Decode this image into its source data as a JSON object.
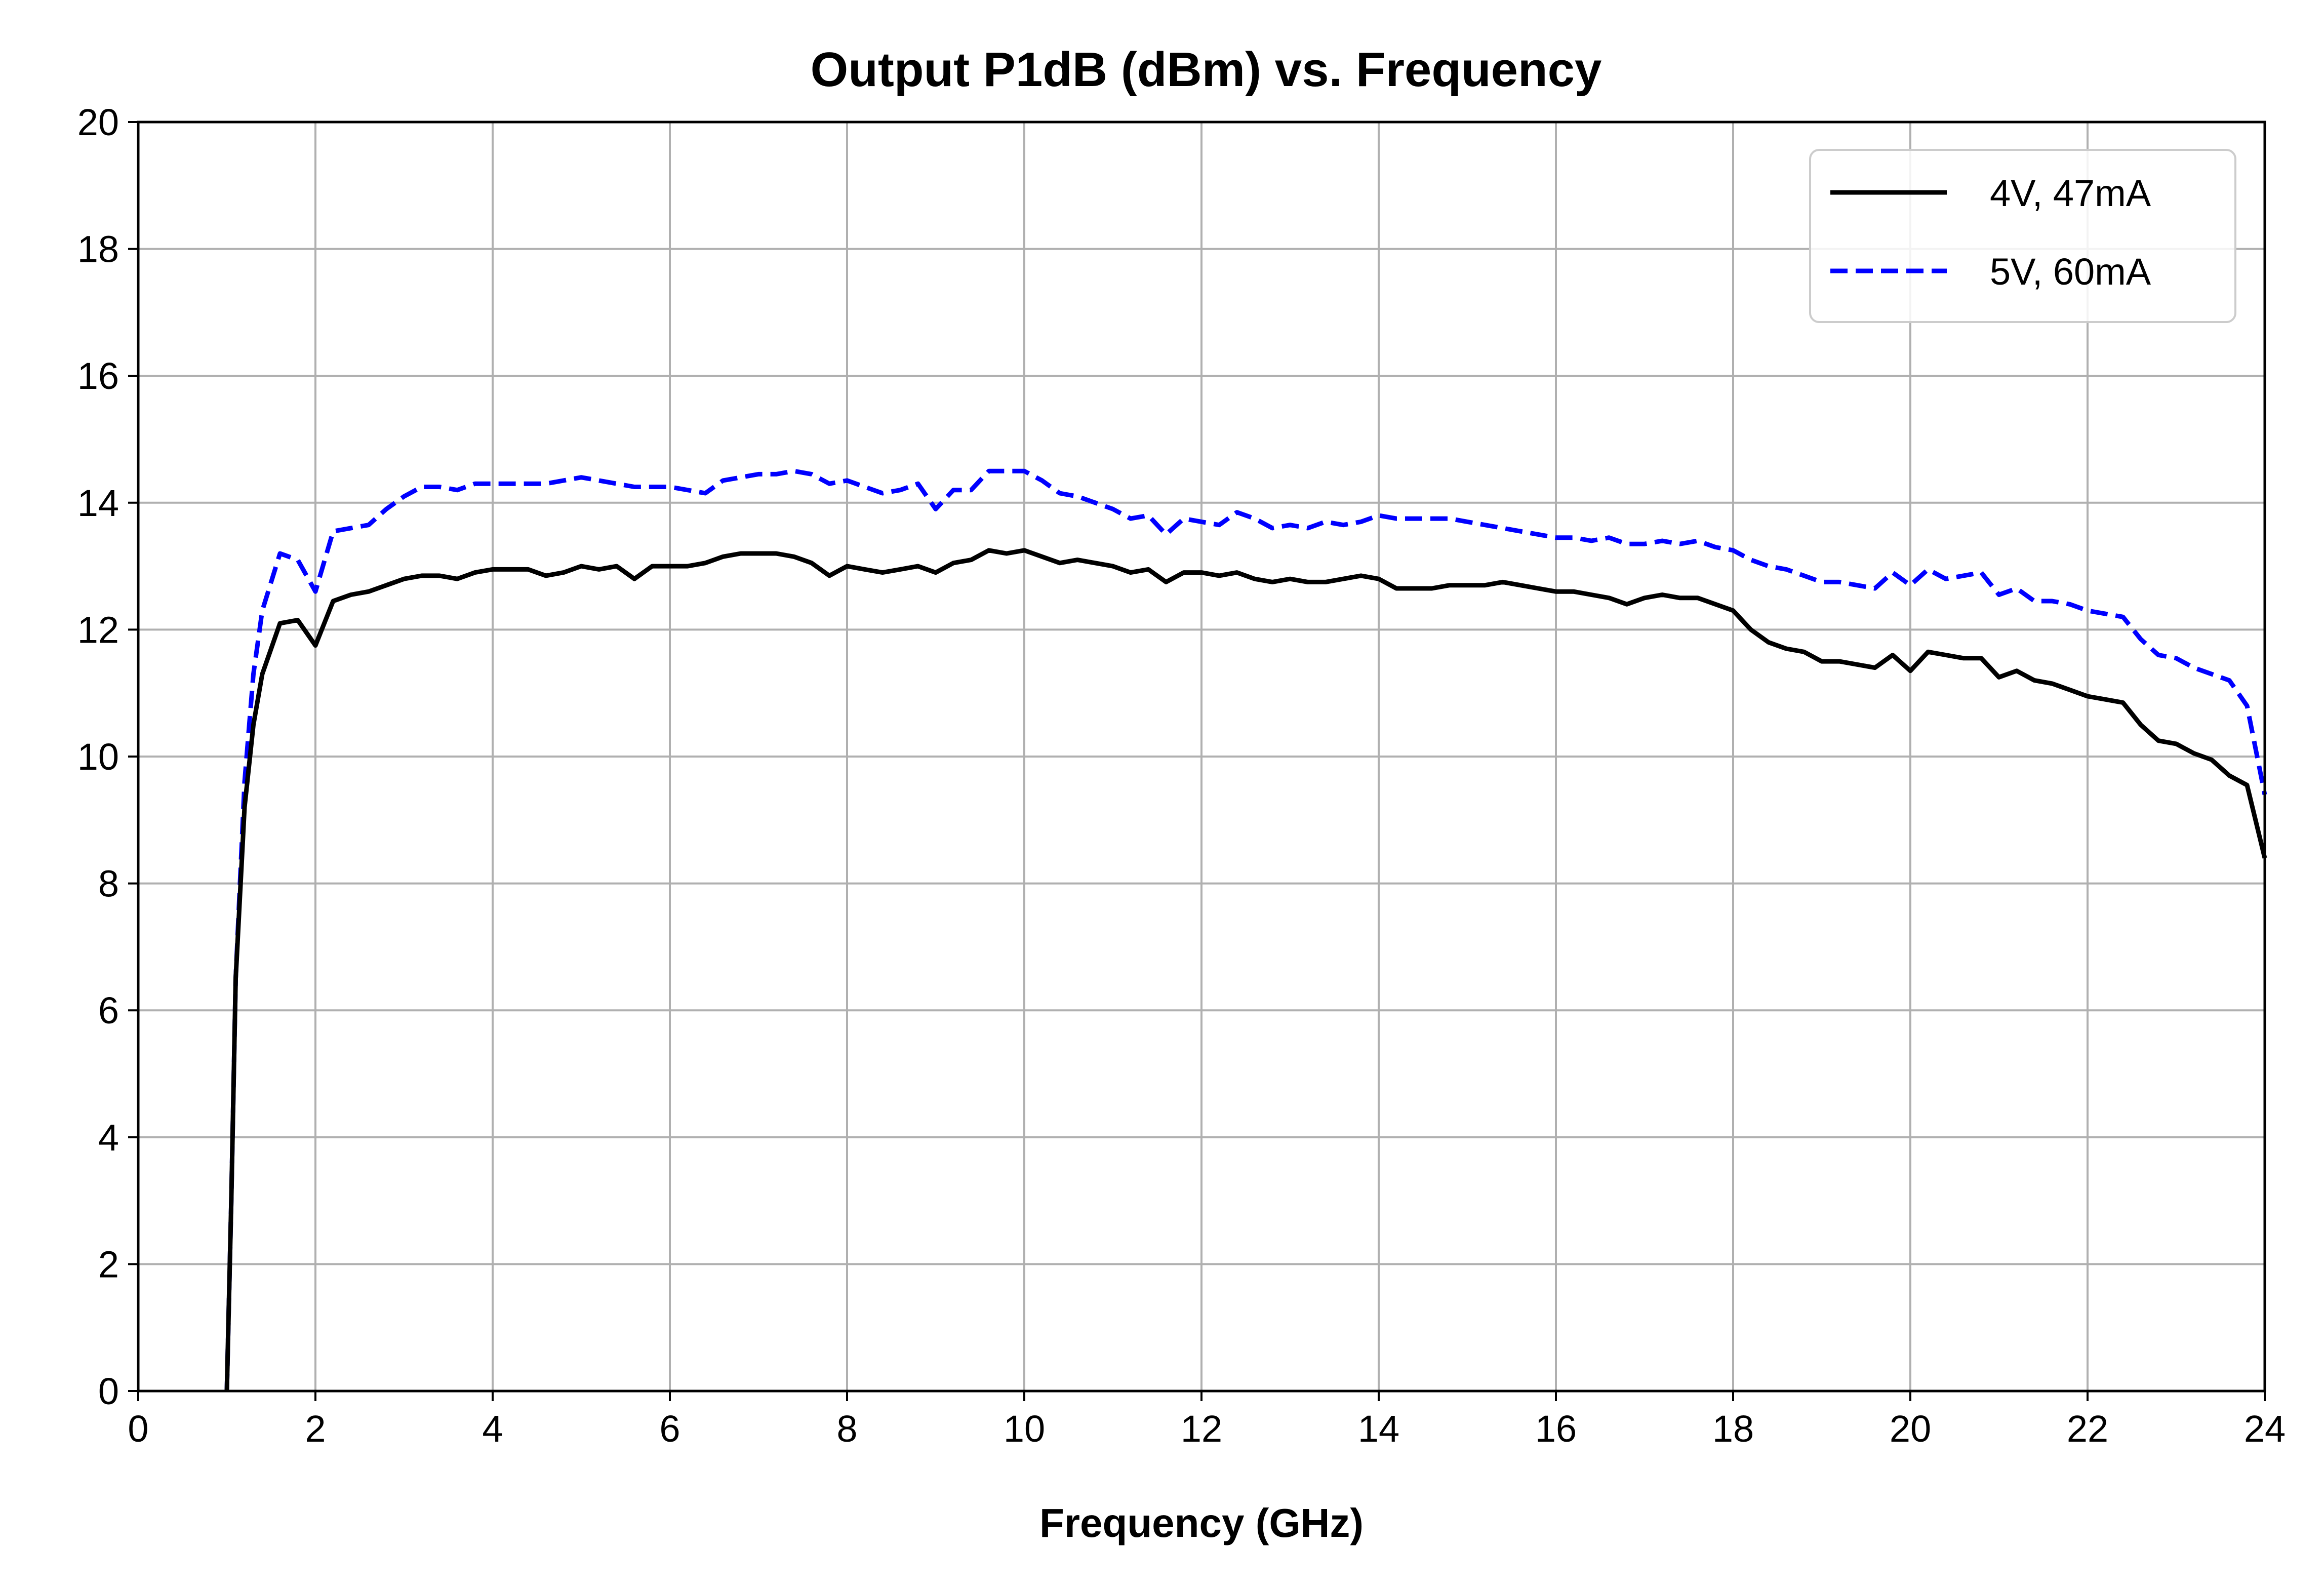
{
  "chart_data": {
    "type": "line",
    "title": "Output P1dB (dBm) vs. Frequency",
    "xlabel": "Frequency (GHz)",
    "ylabel": "",
    "xlim": [
      0,
      24
    ],
    "ylim": [
      0,
      20
    ],
    "xticks": [
      "0",
      "2",
      "4",
      "6",
      "8",
      "10",
      "12",
      "14",
      "16",
      "18",
      "20",
      "22",
      "24"
    ],
    "yticks": [
      "0",
      "2",
      "4",
      "6",
      "8",
      "10",
      "12",
      "14",
      "16",
      "18",
      "20"
    ],
    "grid": true,
    "legend_position": "top-right",
    "series": [
      {
        "name": "4V, 47mA",
        "color": "#000000",
        "style": "solid",
        "x": [
          1.0,
          1.05,
          1.1,
          1.2,
          1.3,
          1.4,
          1.6,
          1.8,
          2.0,
          2.2,
          2.4,
          2.6,
          2.8,
          3.0,
          3.2,
          3.4,
          3.6,
          3.8,
          4.0,
          4.2,
          4.4,
          4.6,
          4.8,
          5.0,
          5.2,
          5.4,
          5.6,
          5.8,
          6.0,
          6.2,
          6.4,
          6.6,
          6.8,
          7.0,
          7.2,
          7.4,
          7.6,
          7.8,
          8.0,
          8.2,
          8.4,
          8.6,
          8.8,
          9.0,
          9.2,
          9.4,
          9.6,
          9.8,
          10.0,
          10.2,
          10.4,
          10.6,
          10.8,
          11.0,
          11.2,
          11.4,
          11.6,
          11.8,
          12.0,
          12.2,
          12.4,
          12.6,
          12.8,
          13.0,
          13.2,
          13.4,
          13.6,
          13.8,
          14.0,
          14.2,
          14.4,
          14.6,
          14.8,
          15.0,
          15.2,
          15.4,
          15.6,
          15.8,
          16.0,
          16.2,
          16.4,
          16.6,
          16.8,
          17.0,
          17.2,
          17.4,
          17.6,
          17.8,
          18.0,
          18.2,
          18.4,
          18.6,
          18.8,
          19.0,
          19.2,
          19.4,
          19.6,
          19.8,
          20.0,
          20.2,
          20.4,
          20.6,
          20.8,
          21.0,
          21.2,
          21.4,
          21.6,
          21.8,
          22.0,
          22.2,
          22.4,
          22.6,
          22.8,
          23.0,
          23.2,
          23.4,
          23.6,
          23.8,
          24.0
        ],
        "y": [
          0.0,
          3.0,
          6.5,
          9.2,
          10.5,
          11.3,
          12.1,
          12.15,
          11.75,
          12.45,
          12.55,
          12.6,
          12.7,
          12.8,
          12.85,
          12.85,
          12.8,
          12.9,
          12.95,
          12.95,
          12.95,
          12.85,
          12.9,
          13.0,
          12.95,
          13.0,
          12.8,
          13.0,
          13.0,
          13.0,
          13.05,
          13.15,
          13.2,
          13.2,
          13.2,
          13.15,
          13.05,
          12.85,
          13.0,
          12.95,
          12.9,
          12.95,
          13.0,
          12.9,
          13.05,
          13.1,
          13.25,
          13.2,
          13.25,
          13.15,
          13.05,
          13.1,
          13.05,
          13.0,
          12.9,
          12.95,
          12.75,
          12.9,
          12.9,
          12.85,
          12.9,
          12.8,
          12.75,
          12.8,
          12.75,
          12.75,
          12.8,
          12.85,
          12.8,
          12.65,
          12.65,
          12.65,
          12.7,
          12.7,
          12.7,
          12.75,
          12.7,
          12.65,
          12.6,
          12.6,
          12.55,
          12.5,
          12.4,
          12.5,
          12.55,
          12.5,
          12.5,
          12.4,
          12.3,
          12.0,
          11.8,
          11.7,
          11.65,
          11.5,
          11.5,
          11.45,
          11.4,
          11.6,
          11.35,
          11.65,
          11.6,
          11.55,
          11.55,
          11.25,
          11.35,
          11.2,
          11.15,
          11.05,
          10.95,
          10.9,
          10.85,
          10.5,
          10.25,
          10.2,
          10.05,
          9.95,
          9.7,
          9.55,
          8.4
        ]
      },
      {
        "name": "5V, 60mA",
        "color": "#0000ff",
        "style": "dashed",
        "x": [
          1.0,
          1.05,
          1.1,
          1.2,
          1.3,
          1.4,
          1.6,
          1.8,
          2.0,
          2.2,
          2.4,
          2.6,
          2.8,
          3.0,
          3.2,
          3.4,
          3.6,
          3.8,
          4.0,
          4.2,
          4.4,
          4.6,
          4.8,
          5.0,
          5.2,
          5.4,
          5.6,
          5.8,
          6.0,
          6.2,
          6.4,
          6.6,
          6.8,
          7.0,
          7.2,
          7.4,
          7.6,
          7.8,
          8.0,
          8.2,
          8.4,
          8.6,
          8.8,
          9.0,
          9.2,
          9.4,
          9.6,
          9.8,
          10.0,
          10.2,
          10.4,
          10.6,
          10.8,
          11.0,
          11.2,
          11.4,
          11.6,
          11.8,
          12.0,
          12.2,
          12.4,
          12.6,
          12.8,
          13.0,
          13.2,
          13.4,
          13.6,
          13.8,
          14.0,
          14.2,
          14.4,
          14.6,
          14.8,
          15.0,
          15.2,
          15.4,
          15.6,
          15.8,
          16.0,
          16.2,
          16.4,
          16.6,
          16.8,
          17.0,
          17.2,
          17.4,
          17.6,
          17.8,
          18.0,
          18.2,
          18.4,
          18.6,
          18.8,
          19.0,
          19.2,
          19.4,
          19.6,
          19.8,
          20.0,
          20.2,
          20.4,
          20.6,
          20.8,
          21.0,
          21.2,
          21.4,
          21.6,
          21.8,
          22.0,
          22.2,
          22.4,
          22.6,
          22.8,
          23.0,
          23.2,
          23.4,
          23.6,
          23.8,
          24.0
        ],
        "y": [
          0.0,
          3.0,
          6.5,
          9.6,
          11.3,
          12.3,
          13.2,
          13.1,
          12.6,
          13.55,
          13.6,
          13.65,
          13.9,
          14.1,
          14.25,
          14.25,
          14.2,
          14.3,
          14.3,
          14.3,
          14.3,
          14.3,
          14.35,
          14.4,
          14.35,
          14.3,
          14.25,
          14.25,
          14.25,
          14.2,
          14.15,
          14.35,
          14.4,
          14.45,
          14.45,
          14.5,
          14.45,
          14.3,
          14.35,
          14.25,
          14.15,
          14.2,
          14.3,
          13.9,
          14.2,
          14.2,
          14.5,
          14.5,
          14.5,
          14.35,
          14.15,
          14.1,
          14.0,
          13.9,
          13.75,
          13.8,
          13.5,
          13.75,
          13.7,
          13.65,
          13.85,
          13.75,
          13.6,
          13.65,
          13.6,
          13.7,
          13.65,
          13.7,
          13.8,
          13.75,
          13.75,
          13.75,
          13.75,
          13.7,
          13.65,
          13.6,
          13.55,
          13.5,
          13.45,
          13.45,
          13.4,
          13.45,
          13.35,
          13.35,
          13.4,
          13.35,
          13.4,
          13.3,
          13.25,
          13.1,
          13.0,
          12.95,
          12.85,
          12.75,
          12.75,
          12.7,
          12.65,
          12.9,
          12.7,
          12.95,
          12.8,
          12.85,
          12.9,
          12.55,
          12.65,
          12.45,
          12.45,
          12.4,
          12.3,
          12.25,
          12.2,
          11.85,
          11.6,
          11.55,
          11.4,
          11.3,
          11.2,
          10.8,
          9.4
        ]
      }
    ]
  }
}
